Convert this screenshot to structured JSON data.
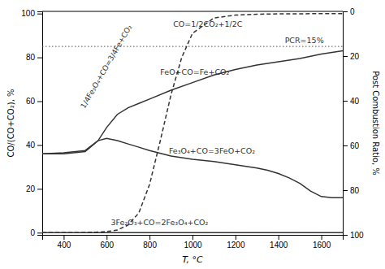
{
  "chart_data": {
    "type": "line",
    "xlabel": "T, °C",
    "ylabel": "CO/(CO+CO₂), %",
    "y2label": "Post Combustion Ratio, %",
    "xlim": [
      300,
      1700
    ],
    "ylim": [
      -1,
      101
    ],
    "xticks": [
      400,
      600,
      800,
      1000,
      1200,
      1400,
      1600
    ],
    "yticks": [
      0,
      20,
      40,
      60,
      80,
      100
    ],
    "y2lim": [
      100,
      0
    ],
    "y2ticks": [
      0,
      20,
      40,
      60,
      80,
      100
    ],
    "series": [
      {
        "color": "#333333",
        "line_style": "dashed",
        "x": [
          300,
          350,
          400,
          450,
          500,
          550,
          600,
          650,
          700,
          750,
          800,
          850,
          900,
          950,
          1000,
          1100,
          1200,
          1300,
          1400,
          1500,
          1600,
          1700
        ],
        "values": [
          0,
          0,
          0,
          0,
          0.1,
          0.2,
          0.5,
          1.2,
          3.5,
          9,
          22,
          42,
          63,
          80,
          91,
          98,
          99.3,
          99.7,
          99.85,
          99.92,
          99.95,
          99.97
        ]
      },
      {
        "color": "#333333",
        "line_style": "solid",
        "x": [
          300,
          400,
          500,
          560,
          600,
          650,
          700,
          750,
          800,
          900,
          1000,
          1100,
          1200,
          1300,
          1400,
          1500,
          1600,
          1700
        ],
        "values": [
          36,
          36.5,
          37.5,
          42,
          48,
          54,
          57,
          59,
          61,
          65,
          68.5,
          72,
          74.5,
          76.5,
          78,
          79.5,
          81.5,
          83
        ]
      },
      {
        "color": "#333333",
        "line_style": "solid",
        "x": [
          300,
          400,
          500,
          560,
          600,
          650,
          700,
          750,
          800,
          900,
          1000,
          1100,
          1200,
          1300,
          1350,
          1400,
          1450,
          1500,
          1550,
          1600,
          1650,
          1700
        ],
        "values": [
          36,
          36,
          37,
          42,
          43,
          42,
          40.5,
          39,
          37.5,
          35,
          33.5,
          32.5,
          31,
          29.5,
          28.5,
          27,
          25,
          22.5,
          19,
          16.5,
          16,
          16
        ]
      },
      {
        "color": "#333333",
        "line_style": "solid",
        "x": [
          300,
          400,
          600,
          800,
          1000,
          1200,
          1400,
          1600,
          1700
        ],
        "values": [
          0,
          0,
          0,
          0,
          0,
          0,
          0,
          0,
          0
        ]
      }
    ],
    "reference_lines": [
      {
        "value": 85,
        "color": "#555555",
        "line_style": "dotted"
      }
    ],
    "annotations": [
      {
        "text": "CO=1/2CO₂+1/2C",
        "x": 910,
        "y": 95
      },
      {
        "text": "PCR=15%",
        "x": 1430,
        "y": 87.5
      },
      {
        "text": "FeO+CO=Fe+CO₂",
        "x": 850,
        "y": 73
      },
      {
        "text": "1/4Fe₃O₄+CO=3/4Fe+CO₂",
        "x": 490,
        "y": 57
      },
      {
        "text": "Fe₃O₄+CO=3FeO+CO₂",
        "x": 890,
        "y": 37
      },
      {
        "text": "3Fe₂O₃+CO=2Fe₃O₄+CO₂",
        "x": 620,
        "y": 4.5
      }
    ]
  }
}
